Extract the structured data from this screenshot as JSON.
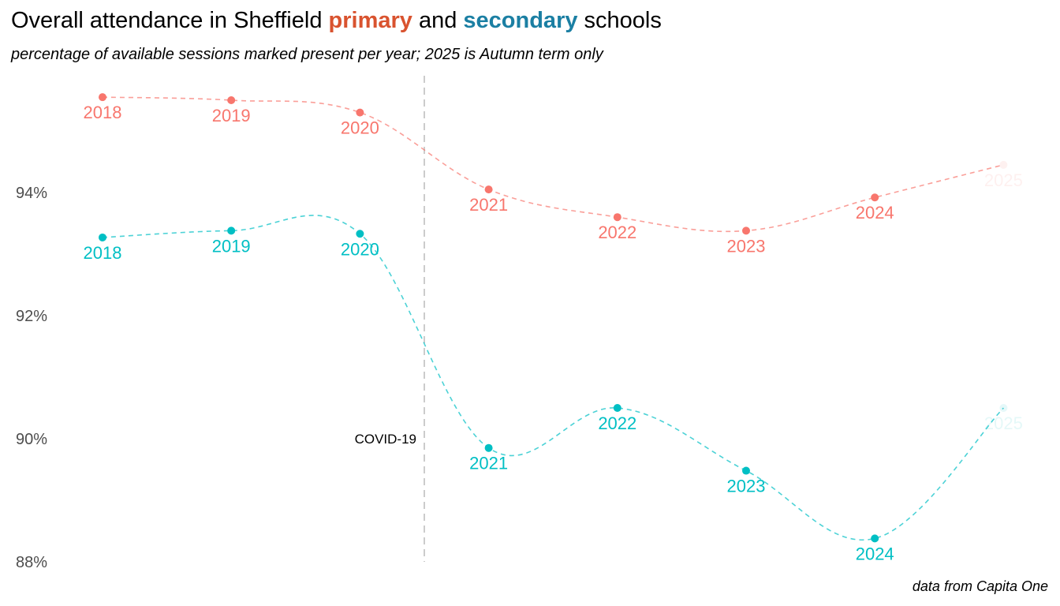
{
  "title": {
    "prefix": "Overall attendance in Sheffield ",
    "primary_word": "primary",
    "middle": " and ",
    "secondary_word": "secondary",
    "suffix": " schools"
  },
  "subtitle": "percentage of available sessions marked present per year; 2025 is Autumn term only",
  "caption": "data from Capita One",
  "colors": {
    "primary": "#f8766d",
    "secondary": "#00bfc4",
    "primary_title": "#d9532f",
    "secondary_title": "#1b7fa3",
    "covid_line": "#cccccc"
  },
  "chart_data": {
    "type": "line",
    "x": [
      "2018",
      "2019",
      "2020",
      "2021",
      "2022",
      "2023",
      "2024",
      "2025"
    ],
    "series": [
      {
        "name": "primary",
        "values": [
          95.55,
          95.5,
          95.3,
          94.05,
          93.6,
          93.38,
          93.92,
          94.45
        ],
        "faded_last": true
      },
      {
        "name": "secondary",
        "values": [
          93.27,
          93.38,
          93.33,
          89.85,
          90.5,
          89.48,
          88.38,
          90.5
        ],
        "faded_last": true
      }
    ],
    "y_ticks": [
      88,
      90,
      92,
      94
    ],
    "y_tick_labels": [
      "88%",
      "90%",
      "92%",
      "94%"
    ],
    "ylim": [
      88,
      95.9
    ],
    "grid": false,
    "annotation": {
      "label": "COVID-19",
      "x_between": [
        "2020",
        "2021"
      ]
    }
  }
}
